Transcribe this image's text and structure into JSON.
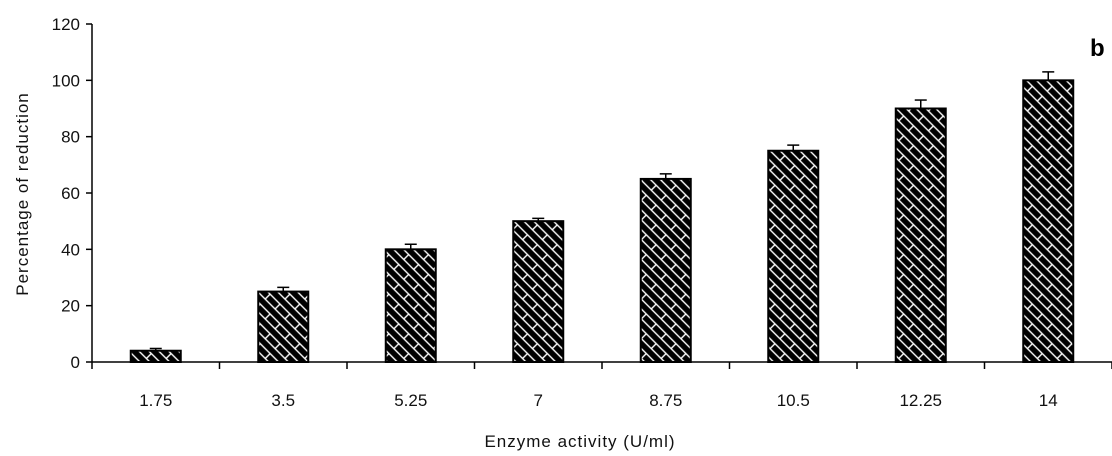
{
  "chart_data": {
    "type": "bar",
    "panel_label": "b",
    "xlabel": "Enzyme activity (U/ml)",
    "ylabel": "Percentage of reduction",
    "categories": [
      "1.75",
      "3.5",
      "5.25",
      "7",
      "8.75",
      "10.5",
      "12.25",
      "14"
    ],
    "values": [
      4,
      25,
      40,
      50,
      65,
      75,
      90,
      100
    ],
    "errors": [
      0.8,
      1.5,
      1.8,
      1.0,
      1.8,
      2.0,
      3.0,
      3.0
    ],
    "ylim": [
      0,
      120
    ],
    "yticks": [
      "0",
      "20",
      "40",
      "60",
      "80",
      "100",
      "120"
    ],
    "grid": false,
    "bar_fill": "#000000",
    "hatch_color": "#ffffff"
  }
}
